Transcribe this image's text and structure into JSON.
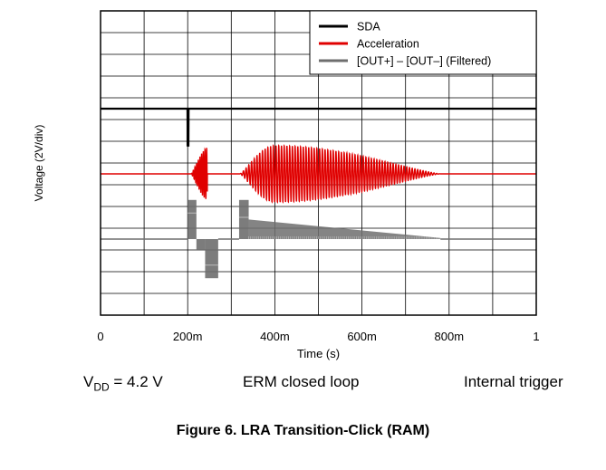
{
  "chart_data": {
    "type": "line",
    "title": "",
    "xlabel": "Time (s)",
    "ylabel": "Voltage (2V/div)",
    "xlim": [
      0,
      1
    ],
    "xtick_labels": [
      "0",
      "200m",
      "400m",
      "600m",
      "800m",
      "1"
    ],
    "xtick_values": [
      0,
      0.2,
      0.4,
      0.6,
      0.8,
      1.0
    ],
    "grid": true,
    "x_divisions": 10,
    "y_divisions": 14,
    "legend_position": "top-right",
    "legend": [
      {
        "label": "SDA",
        "color": "#000000"
      },
      {
        "label": "Acceleration",
        "color": "#e00000"
      },
      {
        "label": "[OUT+] – [OUT–] (Filtered)",
        "color": "#6e6e6e"
      }
    ],
    "series": [
      {
        "name": "SDA",
        "color": "#000000",
        "baseline_div": 9.5,
        "pulse": {
          "t_start": 0.2,
          "t_end": 0.202,
          "depth_div": -1.7
        }
      },
      {
        "name": "Acceleration",
        "color": "#e00000",
        "baseline_div": 6.5,
        "bursts": [
          {
            "t_start": 0.208,
            "t_end": 0.245,
            "peak": 0.248,
            "amp_div": 1.2,
            "freq_hz": 260
          },
          {
            "t_start": 0.32,
            "t_end": 0.78,
            "peak": 0.4,
            "amp_div": 1.3,
            "freq_hz": 160
          }
        ]
      },
      {
        "name": "[OUT+] – [OUT–] (Filtered)",
        "color": "#6e6e6e",
        "baseline_div": 3.5,
        "segments": [
          {
            "t_start": 0.2,
            "t_end": 0.22,
            "level_div": 1.8,
            "mid_div": 1.2
          },
          {
            "t_start": 0.22,
            "t_end": 0.24,
            "level_div": -0.5
          },
          {
            "t_start": 0.24,
            "t_end": 0.27,
            "level_div": -1.8,
            "mid_div": -1.2
          },
          {
            "t_start": 0.318,
            "t_end": 0.34,
            "level_div": 1.8,
            "mid_div": 1.0
          },
          {
            "t_start": 0.34,
            "t_end": 0.78,
            "level_div_start": 0.9,
            "level_div_end": 0.05
          }
        ]
      }
    ]
  },
  "conditions": {
    "vdd_prefix": "V",
    "vdd_sub": "DD",
    "vdd_value": " = 4.2 V",
    "mode": "ERM closed loop",
    "trigger": "Internal trigger"
  },
  "caption": "Figure 6. LRA Transition-Click (RAM)"
}
